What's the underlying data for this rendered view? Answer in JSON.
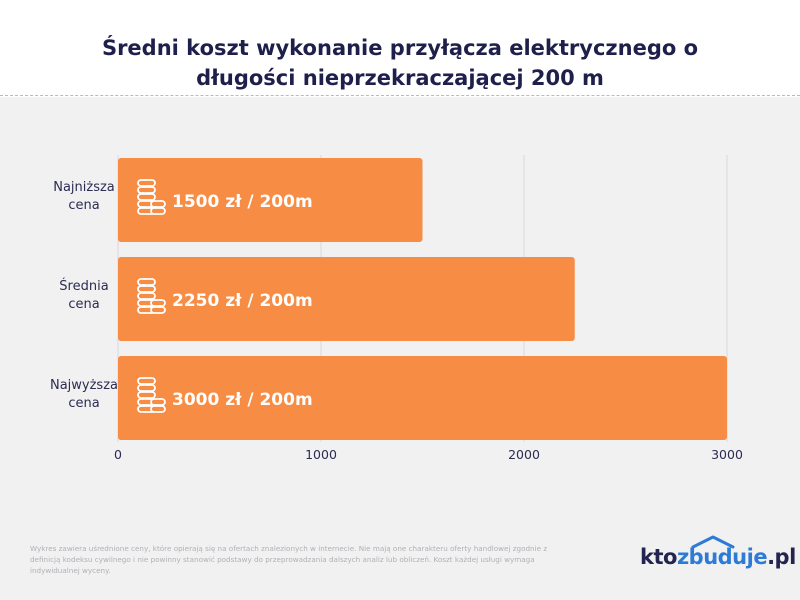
{
  "chart_data": {
    "type": "bar",
    "orientation": "horizontal",
    "title_lines": [
      "Średni koszt wykonanie przyłącza elektrycznego o",
      "długości nieprzekraczającej 200 m"
    ],
    "categories": [
      [
        "Najniższa",
        "cena"
      ],
      [
        "Średnia",
        "cena"
      ],
      [
        "Najwyższa",
        "cena"
      ]
    ],
    "values": [
      1500,
      2250,
      3000
    ],
    "data_labels": [
      "1500 zł / 200m",
      "2250 zł / 200m",
      "3000 zł / 200m"
    ],
    "xlim": [
      0,
      3000
    ],
    "xticks": [
      "0",
      "1000",
      "2000",
      "3000"
    ],
    "grid": "vertical",
    "bar_color": "#f78c45",
    "grid_color": "#d9d8dc"
  },
  "footnote": "Wykres zawiera uśrednione ceny, które opierają się na ofertach znalezionych w internecie. Nie mają one charakteru oferty handlowej zgodnie z definicją kodeksu cywilnego i nie powinny stanowić podstawy do przeprowadzania dalszych analiz lub obliczeń. Koszt każdej usługi wymaga indywidualnej wyceny.",
  "logo": {
    "part1": "kto",
    "part2": "zbuduje",
    "part3": ".pl",
    "accent_color": "#2e7bd6"
  }
}
